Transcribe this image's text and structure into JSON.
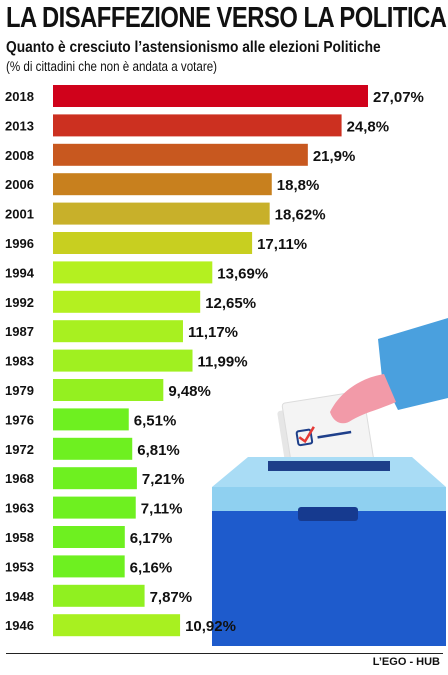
{
  "header": {
    "title": "LA DISAFFEZIONE VERSO LA POLITICA",
    "subtitle": "Quanto è cresciuto l’astensionismo alle elezioni Politiche",
    "note": "(% di cittadini che non è andata a votare)"
  },
  "footer": {
    "source": "L’EGO - HUB"
  },
  "chart_data": {
    "type": "bar",
    "orientation": "horizontal",
    "categories": [
      "2018",
      "2013",
      "2008",
      "2006",
      "2001",
      "1996",
      "1994",
      "1992",
      "1987",
      "1983",
      "1979",
      "1976",
      "1972",
      "1968",
      "1963",
      "1958",
      "1953",
      "1948",
      "1946"
    ],
    "values": [
      27.07,
      24.8,
      21.9,
      18.8,
      18.62,
      17.11,
      13.69,
      12.65,
      11.17,
      11.99,
      9.48,
      6.51,
      6.81,
      7.21,
      7.11,
      6.17,
      6.16,
      7.87,
      10.92
    ],
    "value_labels": [
      "27,07%",
      "24,8%",
      "21,9%",
      "18,8%",
      "18,62%",
      "17,11%",
      "13,69%",
      "12,65%",
      "11,17%",
      "11,99%",
      "9,48%",
      "6,51%",
      "6,81%",
      "7,21%",
      "7,11%",
      "6,17%",
      "6,16%",
      "7,87%",
      "10,92%"
    ],
    "colors": [
      "#d0021b",
      "#cc3020",
      "#c8581f",
      "#c8801e",
      "#c8b02a",
      "#c8cf20",
      "#b4f020",
      "#b4f020",
      "#a8f020",
      "#a0f020",
      "#94f020",
      "#6ef020",
      "#6ef020",
      "#6ef020",
      "#6ef020",
      "#6ef020",
      "#6ef020",
      "#90f020",
      "#a8f020"
    ],
    "title": "LA DISAFFEZIONE VERSO LA POLITICA",
    "xlabel": "",
    "ylabel": "",
    "xlim": [
      0,
      27.07
    ],
    "grid": false,
    "legend": "none"
  }
}
